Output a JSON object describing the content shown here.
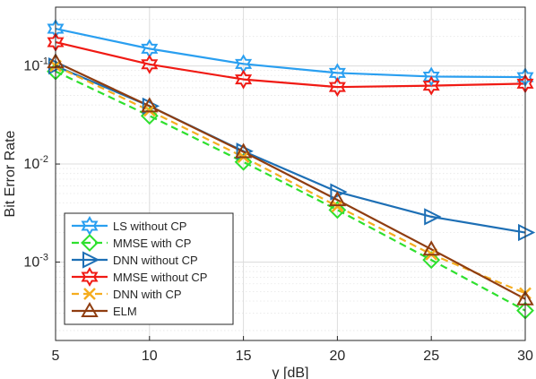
{
  "chart_data": {
    "type": "line",
    "xlabel": "γ [dB]",
    "ylabel": "Bit Error Rate",
    "x_scale": "linear",
    "y_scale": "log",
    "xlim": [
      5,
      30
    ],
    "ylim": [
      0.0001585,
      0.3981
    ],
    "grid": true,
    "minor_grid": true,
    "legend_position": "bottom-left",
    "x": [
      5,
      10,
      15,
      20,
      25,
      30
    ],
    "x_ticks": [
      5,
      10,
      15,
      20,
      25,
      30
    ],
    "x_tick_labels": [
      "5",
      "10",
      "15",
      "20",
      "25",
      "30"
    ],
    "y_ticks": [
      {
        "value": 0.1,
        "base": "10",
        "exp": "-1"
      },
      {
        "value": 0.01,
        "base": "10",
        "exp": "-2"
      },
      {
        "value": 0.001,
        "base": "10",
        "exp": "-3"
      }
    ],
    "series": [
      {
        "name": "LS without CP",
        "color": "#2a9ff0",
        "marker": "hexagram",
        "dash": "solid",
        "values": [
          0.24,
          0.15,
          0.105,
          0.085,
          0.078,
          0.077
        ]
      },
      {
        "name": "MMSE with CP",
        "color": "#2ee02e",
        "marker": "diamond",
        "dash": "dashed",
        "values": [
          0.088,
          0.031,
          0.0105,
          0.0034,
          0.00105,
          0.00032
        ]
      },
      {
        "name": "DNN without CP",
        "color": "#1d6fb5",
        "marker": "triangle-right",
        "dash": "solid",
        "values": [
          0.1,
          0.039,
          0.0135,
          0.0052,
          0.0029,
          0.002
        ]
      },
      {
        "name": "MMSE without CP",
        "color": "#f01a14",
        "marker": "hexagram",
        "dash": "solid",
        "values": [
          0.175,
          0.104,
          0.073,
          0.061,
          0.063,
          0.066
        ]
      },
      {
        "name": "DNN with CP",
        "color": "#f5ad1f",
        "marker": "x",
        "dash": "dashed",
        "values": [
          0.1,
          0.035,
          0.0118,
          0.0037,
          0.0012,
          0.00048
        ]
      },
      {
        "name": "ELM",
        "color": "#8f3d10",
        "marker": "triangle-up",
        "dash": "solid",
        "values": [
          0.11,
          0.039,
          0.0133,
          0.0043,
          0.00135,
          0.00042
        ]
      }
    ]
  }
}
